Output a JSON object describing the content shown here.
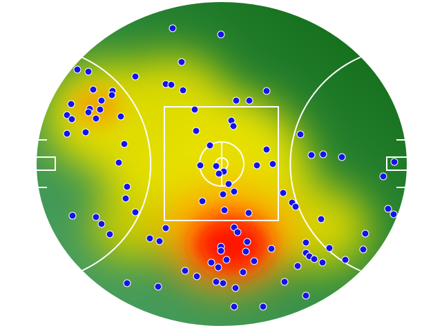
{
  "chart_data": {
    "type": "scatter",
    "xlim": [
      0,
      538
    ],
    "ylim": [
      0,
      472
    ],
    "grid": false,
    "series": [
      {
        "color": "#1414e6",
        "x": [
          198,
          268,
          60,
          76,
          144,
          211,
          188,
          196,
          213,
          83,
          111,
          110,
          95,
          51,
          78,
          76,
          93,
          45,
          52,
          87,
          123,
          45,
          72,
          128,
          120,
          132,
          130,
          144,
          53,
          87,
          95,
          107,
          188,
          165,
          179,
          132,
          177,
          216,
          233,
          261,
          271,
          289,
          287,
          329,
          290,
          309,
          334,
          230,
          283,
          286,
          232,
          252,
          334,
          238,
          261,
          272,
          265,
          320,
          343,
          279,
          287,
          271,
          241,
          273,
          308,
          287,
          292,
          306,
          268,
          268,
          304,
          341,
          316,
          276,
          254,
          264,
          300,
          360,
          391,
          358,
          371,
          376,
          383,
          399,
          416,
          443,
          413,
          391,
          391,
          396,
          379,
          403,
          415,
          425,
          448,
          477,
          474,
          510,
          518,
          503,
          519
        ],
        "y": [
          433,
          424,
          373,
          370,
          363,
          384,
          352,
          351,
          343,
          344,
          342,
          336,
          328,
          323,
          316,
          311,
          315,
          307,
          301,
          302,
          305,
          280,
          282,
          265,
          238,
          203,
          186,
          166,
          161,
          159,
          149,
          134,
          143,
          128,
          124,
          63,
          58,
          81,
          73,
          65,
          63,
          56,
          29,
          29,
          328,
          328,
          342,
          315,
          299,
          291,
          284,
          263,
          257,
          234,
          233,
          225,
          222,
          234,
          236,
          207,
          196,
          192,
          182,
          169,
          165,
          144,
          137,
          123,
          116,
          110,
          109,
          113,
          95,
          97,
          93,
          86,
          79,
          65,
          45,
          194,
          180,
          174,
          279,
          249,
          250,
          246,
          156,
          122,
          107,
          102,
          88,
          98,
          93,
          114,
          97,
          135,
          112,
          171,
          163,
          218,
          239
        ]
      }
    ]
  }
}
